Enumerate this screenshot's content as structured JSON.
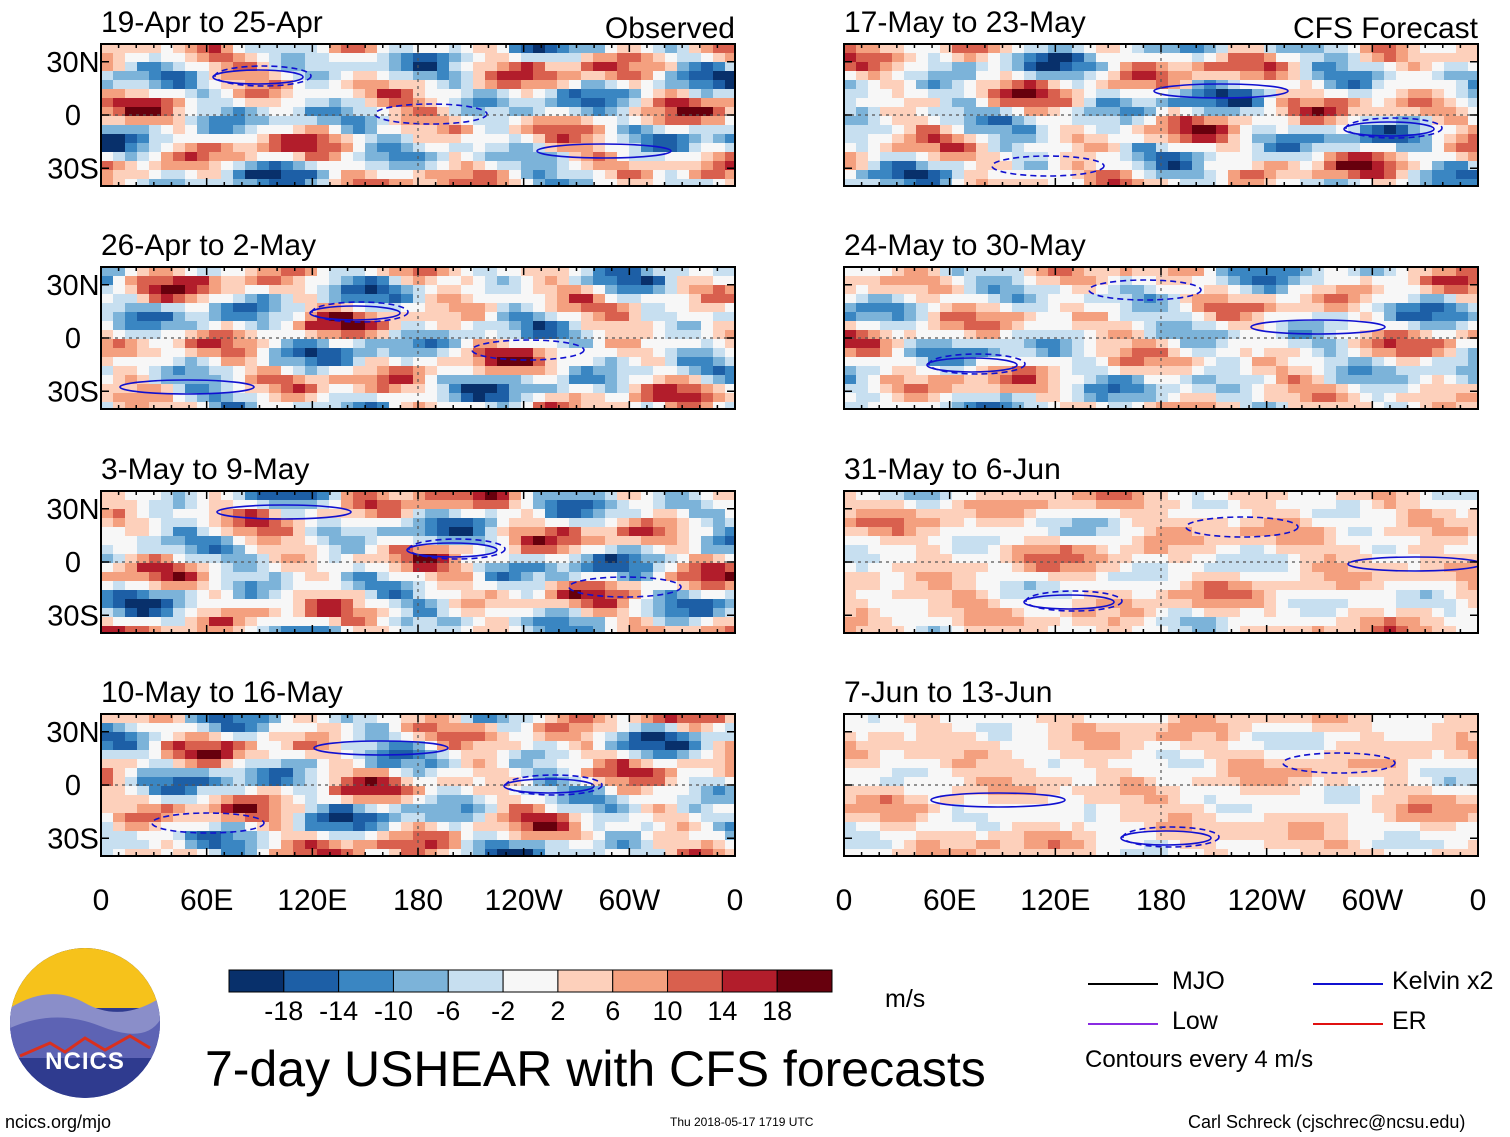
{
  "chart_data": {
    "type": "heatmap",
    "title": "7-day USHEAR with CFS forecasts",
    "variable": "USHEAR",
    "units": "m/s",
    "columns": [
      {
        "label": "Observed",
        "panels": [
          "19-Apr to 25-Apr",
          "26-Apr to 2-May",
          "3-May to 9-May",
          "10-May to 16-May"
        ]
      },
      {
        "label": "CFS Forecast",
        "panels": [
          "17-May to 23-May",
          "24-May to 30-May",
          "31-May to 6-Jun",
          "7-Jun to 13-Jun"
        ]
      }
    ],
    "y_ticks": [
      "30N",
      "0",
      "30S"
    ],
    "x_ticks": [
      "0",
      "60E",
      "120E",
      "180",
      "120W",
      "60W",
      "0"
    ],
    "lat_range": [
      -40,
      40
    ],
    "lon_range": [
      0,
      360
    ],
    "colorbar": {
      "ticks": [
        "-18",
        "-14",
        "-10",
        "-6",
        "-2",
        "2",
        "6",
        "10",
        "14",
        "18"
      ],
      "colors": [
        "#08306b",
        "#1d5fa6",
        "#3a86c2",
        "#7cb3d9",
        "#c7dff0",
        "#f7f7f7",
        "#fdd0bb",
        "#f4a07f",
        "#d9604e",
        "#b21d2b",
        "#67000d"
      ]
    },
    "contour_legend": [
      {
        "label": "MJO",
        "color": "#000000"
      },
      {
        "label": "Kelvin x2",
        "color": "#1010d0"
      },
      {
        "label": "Low",
        "color": "#8a2be2"
      },
      {
        "label": "ER",
        "color": "#e01010"
      }
    ],
    "contour_note": "Contours every 4 m/s"
  },
  "footer": {
    "left": "ncics.org/mjo",
    "center": "Thu 2018-05-17 1719 UTC",
    "right": "Carl Schreck (cjschrec@ncsu.edu)"
  },
  "logo_text": "NCICS",
  "colors": {
    "frame": "#000000",
    "coast": "#707070",
    "kelvin": "#1010d0"
  }
}
